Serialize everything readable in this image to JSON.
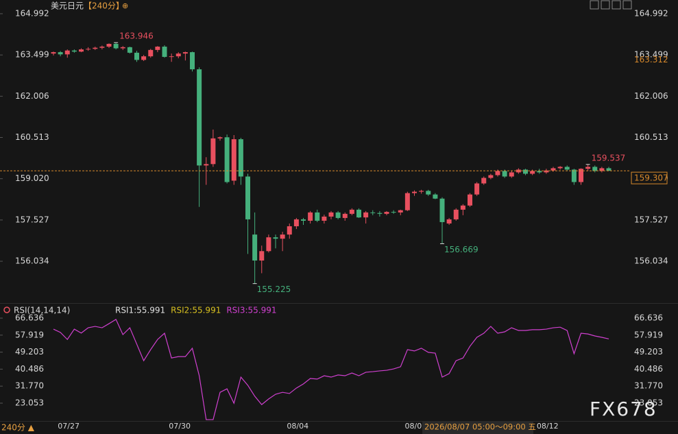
{
  "ui": {
    "title": "美元日元",
    "period": "【240分】",
    "title_icon": "⊕",
    "period_button": "240分 ▲",
    "tooltip": "2026/08/07 05:00～09:00 五",
    "watermark": "FX678"
  },
  "chart_data": [
    {
      "type": "candlestick",
      "categories": [
        null,
        null,
        "07/27",
        null,
        null,
        null,
        null,
        null,
        null,
        null,
        null,
        null,
        null,
        null,
        null,
        null,
        null,
        null,
        "07/30",
        null,
        null,
        null,
        null,
        null,
        null,
        null,
        null,
        null,
        null,
        null,
        null,
        null,
        null,
        null,
        null,
        "08/04",
        null,
        null,
        null,
        null,
        null,
        null,
        null,
        null,
        null,
        null,
        null,
        null,
        null,
        null,
        null,
        null,
        "08/0",
        null,
        null,
        null,
        null,
        null,
        null,
        null,
        null,
        null,
        null,
        null,
        null,
        null,
        null,
        null,
        null,
        null,
        null,
        "08/12",
        null,
        null,
        null,
        null,
        null,
        null,
        null,
        null,
        null
      ],
      "open": [
        163.55,
        163.6,
        163.52,
        163.66,
        163.62,
        163.7,
        163.72,
        163.76,
        163.8,
        163.9,
        163.74,
        163.78,
        163.58,
        163.32,
        163.45,
        163.68,
        163.8,
        163.43,
        163.45,
        163.55,
        163.6,
        162.98,
        159.5,
        159.55,
        160.48,
        160.52,
        158.95,
        160.45,
        159.1,
        157.0,
        156.06,
        156.4,
        156.9,
        156.85,
        157.0,
        157.3,
        157.55,
        157.5,
        157.8,
        157.5,
        157.65,
        157.8,
        157.6,
        157.75,
        157.9,
        157.62,
        157.8,
        157.78,
        157.75,
        157.82,
        157.8,
        157.88,
        158.5,
        158.55,
        158.58,
        158.45,
        158.3,
        157.4,
        157.55,
        157.9,
        158.05,
        158.45,
        158.85,
        159.05,
        159.15,
        159.3,
        159.1,
        159.25,
        159.35,
        159.2,
        159.3,
        159.25,
        159.32,
        159.4,
        159.45,
        159.35,
        158.9,
        159.38,
        159.45,
        159.3,
        159.4
      ],
      "high": [
        163.62,
        163.64,
        163.7,
        163.7,
        163.74,
        163.78,
        163.8,
        163.84,
        163.92,
        163.946,
        163.82,
        163.8,
        163.65,
        163.5,
        163.72,
        163.82,
        163.85,
        163.55,
        163.6,
        163.62,
        163.62,
        163.05,
        159.8,
        160.8,
        160.55,
        160.62,
        160.6,
        160.5,
        159.2,
        157.8,
        156.6,
        157.0,
        157.0,
        157.1,
        157.4,
        157.6,
        157.6,
        157.85,
        157.9,
        157.72,
        157.85,
        157.85,
        157.8,
        157.95,
        157.95,
        157.85,
        157.88,
        157.85,
        157.85,
        157.88,
        157.9,
        158.55,
        158.6,
        158.62,
        158.62,
        158.5,
        158.35,
        157.6,
        157.95,
        158.1,
        158.5,
        158.9,
        159.1,
        159.2,
        159.35,
        159.35,
        159.3,
        159.4,
        159.38,
        159.35,
        159.38,
        159.38,
        159.45,
        159.48,
        159.5,
        159.38,
        159.4,
        159.537,
        159.5,
        159.45,
        159.45
      ],
      "low": [
        163.48,
        163.45,
        163.4,
        163.58,
        163.6,
        163.65,
        163.68,
        163.7,
        163.75,
        163.7,
        163.68,
        163.55,
        163.25,
        163.28,
        163.4,
        163.6,
        163.4,
        163.25,
        163.38,
        163.3,
        162.9,
        158.0,
        158.8,
        159.45,
        160.4,
        158.85,
        158.8,
        158.8,
        156.3,
        155.225,
        155.6,
        156.35,
        156.5,
        156.4,
        156.85,
        157.2,
        157.35,
        157.4,
        157.45,
        157.4,
        157.55,
        157.55,
        157.5,
        157.7,
        157.6,
        157.4,
        157.7,
        157.65,
        157.7,
        157.75,
        157.7,
        157.85,
        158.4,
        158.48,
        158.4,
        158.28,
        156.669,
        157.35,
        157.5,
        157.7,
        158.0,
        158.4,
        158.8,
        159.0,
        159.1,
        159.05,
        159.05,
        159.2,
        159.15,
        159.15,
        159.2,
        159.2,
        159.28,
        159.35,
        159.3,
        158.8,
        158.8,
        159.3,
        159.25,
        159.25,
        159.3
      ],
      "close": [
        163.6,
        163.52,
        163.66,
        163.62,
        163.7,
        163.72,
        163.76,
        163.8,
        163.9,
        163.74,
        163.78,
        163.58,
        163.32,
        163.45,
        163.68,
        163.8,
        163.43,
        163.45,
        163.55,
        163.6,
        162.98,
        159.5,
        159.55,
        160.48,
        160.52,
        158.9,
        160.45,
        159.1,
        157.55,
        156.06,
        156.4,
        156.9,
        156.85,
        157.0,
        157.3,
        157.55,
        157.5,
        157.8,
        157.5,
        157.65,
        157.8,
        157.6,
        157.75,
        157.9,
        157.62,
        157.8,
        157.78,
        157.75,
        157.82,
        157.8,
        157.88,
        158.5,
        158.55,
        158.58,
        158.45,
        158.3,
        157.45,
        157.55,
        157.9,
        158.05,
        158.45,
        158.85,
        159.05,
        159.15,
        159.3,
        159.1,
        159.25,
        159.35,
        159.2,
        159.3,
        159.25,
        159.32,
        159.4,
        159.45,
        159.35,
        158.9,
        159.38,
        159.45,
        159.3,
        159.4,
        159.307
      ],
      "high_labels": [
        null,
        null,
        null,
        null,
        null,
        null,
        null,
        null,
        null,
        "163.946",
        null,
        null,
        null,
        null,
        null,
        null,
        null,
        null,
        null,
        null,
        null,
        null,
        null,
        null,
        null,
        null,
        null,
        null,
        null,
        null,
        null,
        null,
        null,
        null,
        null,
        null,
        null,
        null,
        null,
        null,
        null,
        null,
        null,
        null,
        null,
        null,
        null,
        null,
        null,
        null,
        null,
        null,
        null,
        null,
        null,
        null,
        null,
        null,
        null,
        null,
        null,
        null,
        null,
        null,
        null,
        null,
        null,
        null,
        null,
        null,
        null,
        null,
        null,
        null,
        null,
        null,
        null,
        "159.537",
        null,
        null,
        null
      ],
      "low_labels": [
        null,
        null,
        null,
        null,
        null,
        null,
        null,
        null,
        null,
        null,
        null,
        null,
        null,
        null,
        null,
        null,
        null,
        null,
        null,
        null,
        null,
        null,
        null,
        null,
        null,
        null,
        null,
        null,
        null,
        "155.225",
        null,
        null,
        null,
        null,
        null,
        null,
        null,
        null,
        null,
        null,
        null,
        null,
        null,
        null,
        null,
        null,
        null,
        null,
        null,
        null,
        null,
        null,
        null,
        null,
        null,
        null,
        "156.669",
        null,
        null,
        null,
        null,
        null,
        null,
        null,
        null,
        null,
        null,
        null,
        null,
        null,
        null,
        null,
        null,
        null,
        null,
        null,
        null,
        null,
        null,
        null,
        null
      ],
      "up_color": "#e8505f",
      "down_color": "#45b07c",
      "last_line_color": "#d8892c",
      "ref_price": 163.312,
      "ylim": [
        154.571,
        165.364
      ],
      "yticks": [
        156.034,
        157.527,
        {
          "value": 159.02,
          "label": "159.020"
        },
        160.513,
        162.006,
        163.499,
        164.992
      ]
    },
    {
      "type": "line",
      "title": "RSI(14,14,14)",
      "legend": [
        "RSI1:55.991",
        "RSI2:55.991",
        "RSI3:55.991"
      ],
      "legend_colors": [
        "#e0e0e0",
        "#d8c020",
        "#d040d0"
      ],
      "color": "#d040d0",
      "values": [
        61,
        59.3,
        55.7,
        61,
        59,
        61.7,
        62.4,
        61.7,
        63.8,
        66,
        58.2,
        61.7,
        53.3,
        44.8,
        50.5,
        55.7,
        58.9,
        46.2,
        46.9,
        46.9,
        51.2,
        37.1,
        14.6,
        14.6,
        28.6,
        30.4,
        23,
        36.4,
        32.2,
        26.6,
        22.3,
        25.2,
        27.6,
        28.6,
        28,
        30.8,
        32.9,
        35.7,
        35.4,
        37.1,
        36.4,
        37.5,
        37.1,
        38.5,
        37.1,
        38.9,
        39.2,
        39.6,
        39.9,
        40.6,
        41.7,
        50.5,
        49.8,
        51.2,
        49.1,
        48.7,
        36.4,
        38.2,
        44.8,
        46.2,
        52.2,
        56.8,
        58.9,
        62.4,
        58.9,
        59.6,
        61.7,
        60.3,
        60.3,
        60.7,
        60.7,
        61,
        61.7,
        62,
        60.3,
        48.4,
        58.9,
        58.5,
        57.5,
        56.8,
        55.991
      ],
      "ylim": [
        13.56,
        69.8
      ],
      "yticks": [
        23.053,
        {
          "value": 31.77,
          "label": "31.770"
        },
        40.486,
        49.203,
        57.919,
        66.636
      ]
    }
  ]
}
